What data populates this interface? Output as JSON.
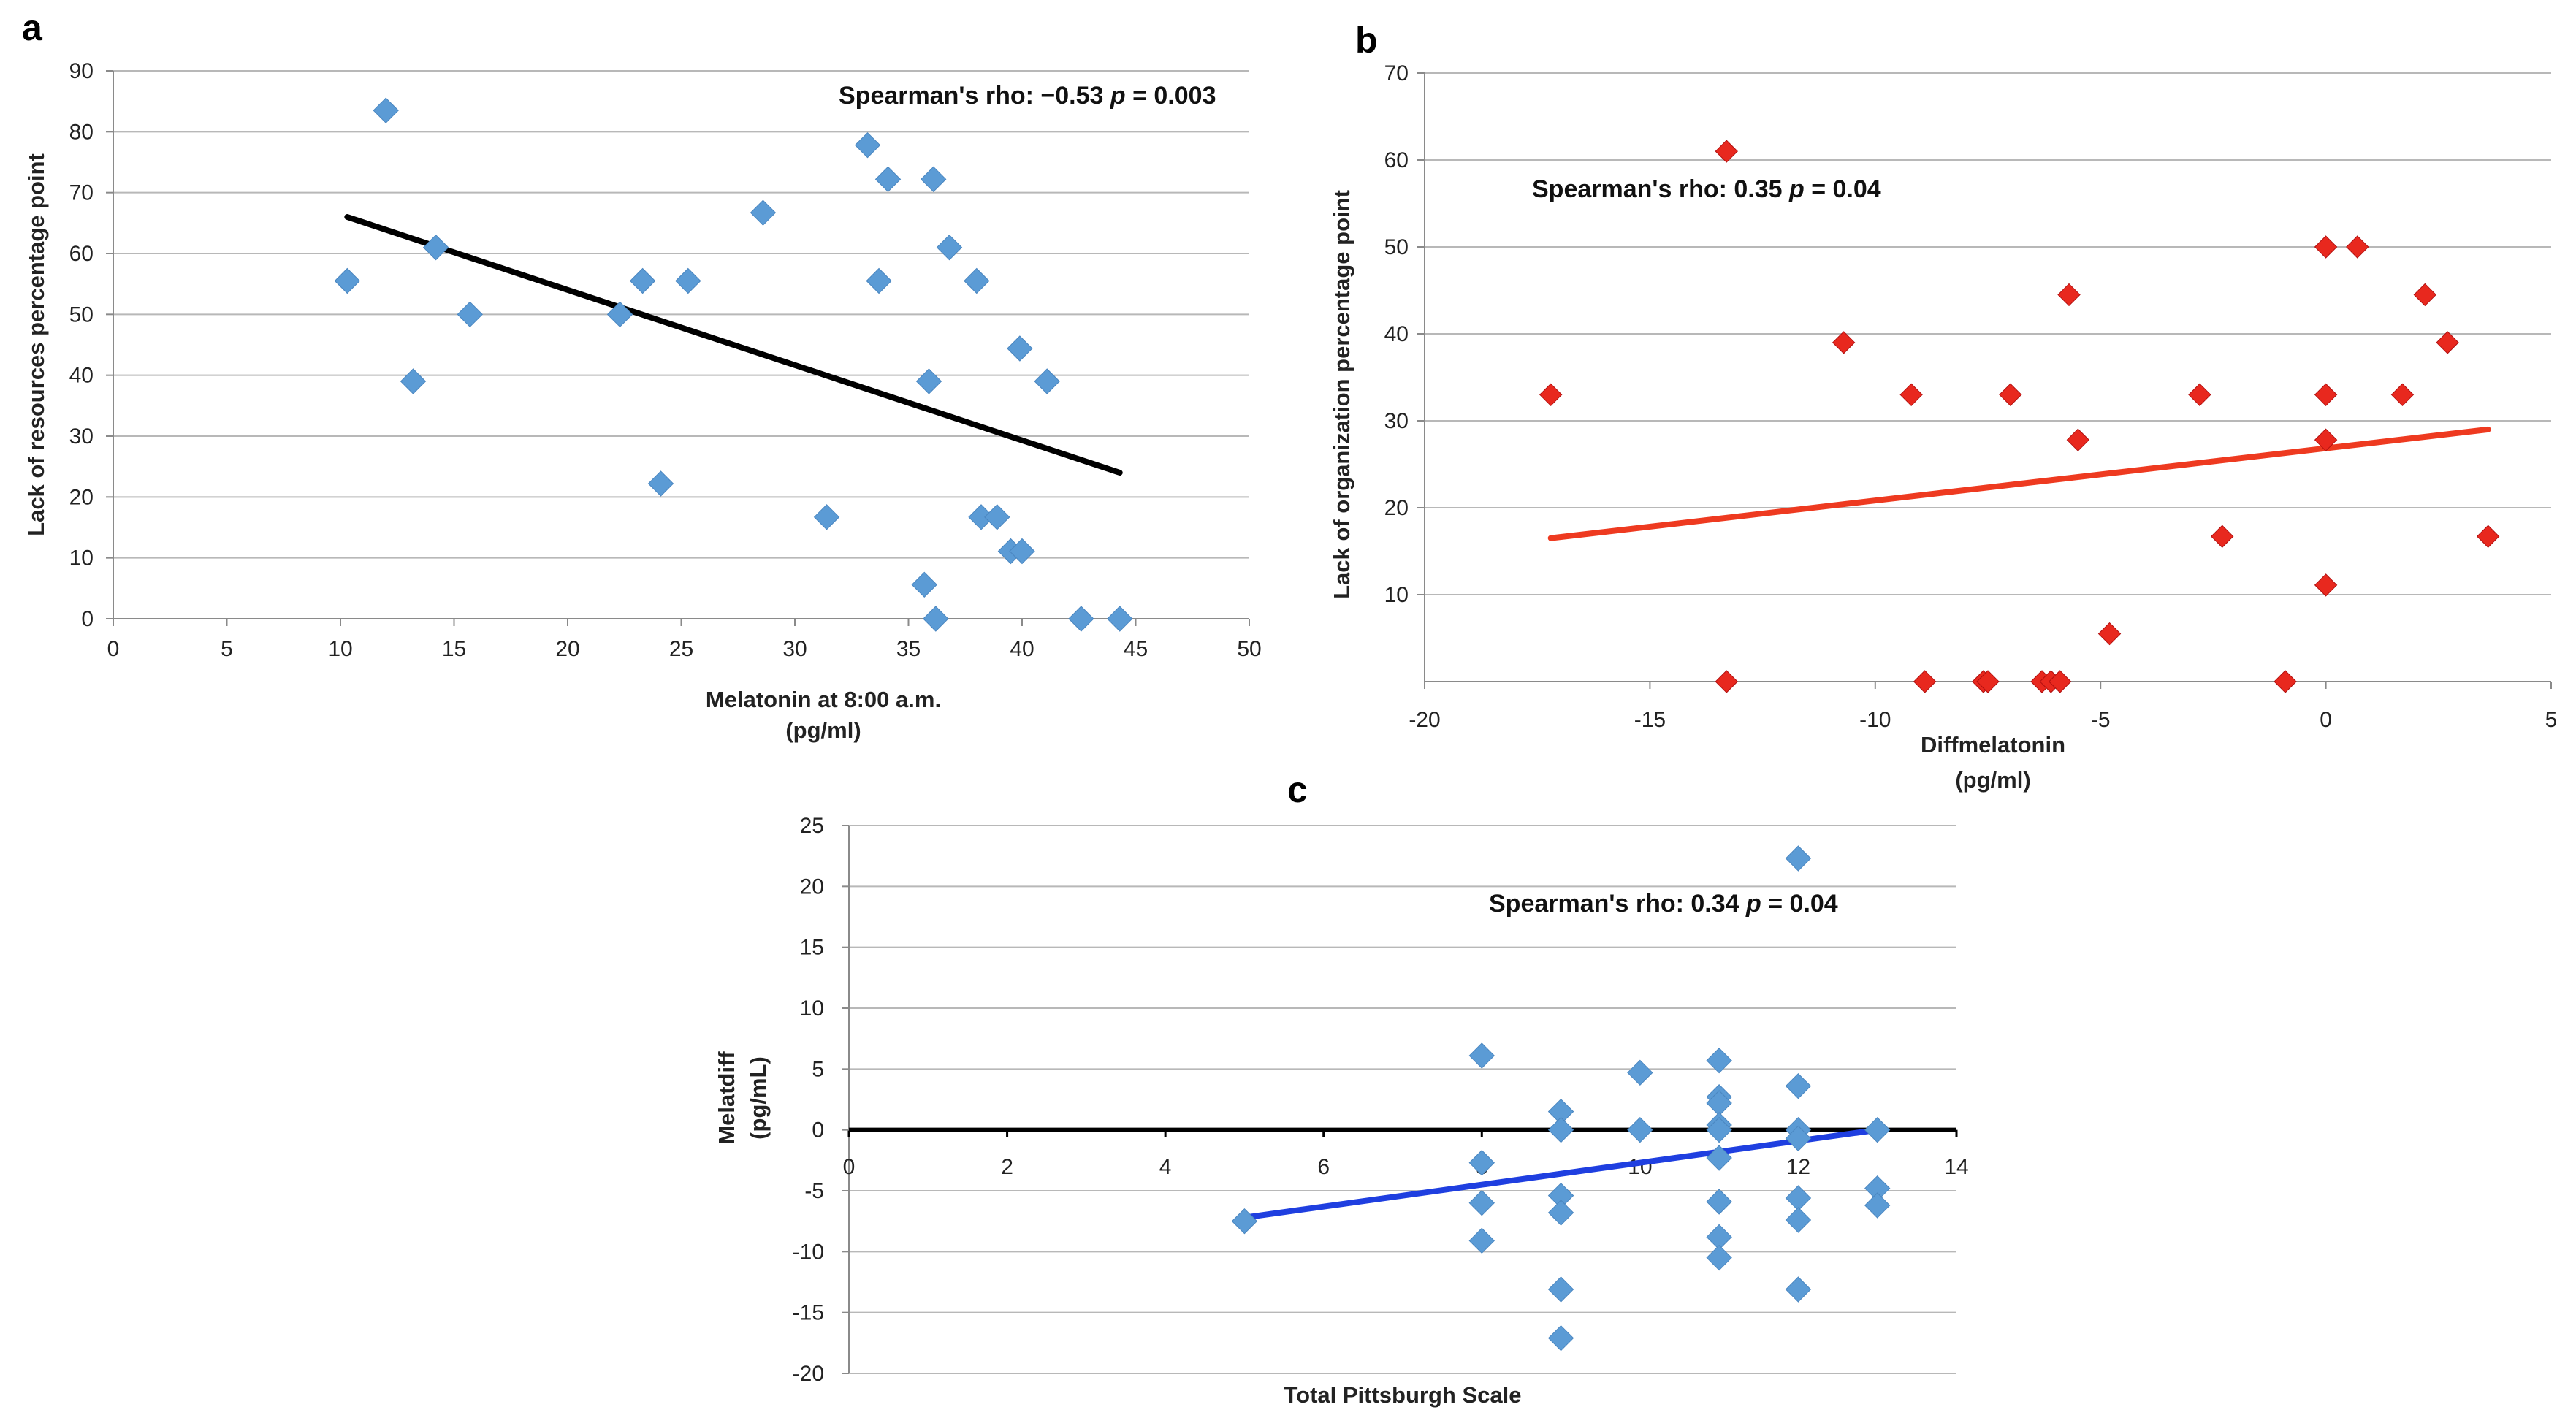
{
  "chart_data": [
    {
      "panel": "a",
      "type": "scatter",
      "xlabel": "Melatonin at 8:00 a.m.",
      "xlabel_unit": "(pg/ml)",
      "ylabel": "Lack of  resources percentage point",
      "xlim": [
        0,
        50
      ],
      "ylim": [
        0,
        90
      ],
      "xticks": [
        0,
        5,
        10,
        15,
        20,
        25,
        30,
        35,
        40,
        45,
        50
      ],
      "yticks": [
        0,
        10,
        20,
        30,
        40,
        50,
        60,
        70,
        80,
        90
      ],
      "annotation": {
        "prefix": "Spearman's rho: −0.53  ",
        "p_label": "p",
        "p_value": " = 0.003"
      },
      "marker": "diamond",
      "marker_color": "#5b9bd5",
      "line_color": "#000000",
      "trendline": [
        [
          10.3,
          66
        ],
        [
          44.3,
          24
        ]
      ],
      "points": [
        [
          10.3,
          55.5
        ],
        [
          12,
          83.5
        ],
        [
          13.2,
          39
        ],
        [
          14.2,
          61
        ],
        [
          15.7,
          50
        ],
        [
          22.3,
          50
        ],
        [
          23.3,
          55.5
        ],
        [
          24.1,
          22.2
        ],
        [
          25.3,
          55.5
        ],
        [
          28.6,
          66.7
        ],
        [
          31.4,
          16.7
        ],
        [
          33.2,
          77.8
        ],
        [
          33.7,
          55.5
        ],
        [
          34.1,
          72.2
        ],
        [
          35.7,
          5.6
        ],
        [
          35.9,
          39
        ],
        [
          36.1,
          72.2
        ],
        [
          36.2,
          0
        ],
        [
          36.8,
          61
        ],
        [
          38,
          55.5
        ],
        [
          38.2,
          16.7
        ],
        [
          38.9,
          16.7
        ],
        [
          39.5,
          11.1
        ],
        [
          39.9,
          44.4
        ],
        [
          40,
          11.1
        ],
        [
          41.1,
          39
        ],
        [
          42.6,
          0
        ],
        [
          44.3,
          0
        ]
      ]
    },
    {
      "panel": "b",
      "type": "scatter",
      "xlabel": "Diffmelatonin",
      "xlabel_unit": "(pg/ml)",
      "ylabel": "Lack of organization percentage point",
      "xlim": [
        -20,
        5
      ],
      "ylim": [
        0,
        70
      ],
      "xticks": [
        -20,
        -15,
        -10,
        -5,
        0,
        5
      ],
      "yticks": [
        10,
        20,
        30,
        40,
        50,
        60,
        70
      ],
      "annotation": {
        "prefix": "Spearman's rho: 0.35  ",
        "p_label": "p",
        "p_value": " = 0.04"
      },
      "marker": "diamond",
      "marker_color": "#e8281e",
      "line_color": "#ee3a20",
      "trendline": [
        [
          -17.2,
          16.5
        ],
        [
          3.6,
          29
        ]
      ],
      "points": [
        [
          -17.2,
          33
        ],
        [
          -13.3,
          61
        ],
        [
          -13.3,
          0
        ],
        [
          -10.7,
          39
        ],
        [
          -9.2,
          33
        ],
        [
          -8.9,
          0
        ],
        [
          -7.6,
          0
        ],
        [
          -7.5,
          0
        ],
        [
          -7,
          33
        ],
        [
          -6.3,
          0
        ],
        [
          -6.1,
          0
        ],
        [
          -5.9,
          0
        ],
        [
          -5.7,
          44.5
        ],
        [
          -5.5,
          27.8
        ],
        [
          -4.8,
          5.5
        ],
        [
          -2.8,
          33
        ],
        [
          -2.3,
          16.7
        ],
        [
          -0.9,
          0
        ],
        [
          0,
          50
        ],
        [
          0,
          33
        ],
        [
          0,
          27.8
        ],
        [
          0,
          11.1
        ],
        [
          0.7,
          50
        ],
        [
          1.7,
          33
        ],
        [
          2.2,
          44.5
        ],
        [
          2.7,
          39
        ],
        [
          3.6,
          16.7
        ]
      ]
    },
    {
      "panel": "c",
      "type": "scatter",
      "xlabel": "Total Pittsburgh Scale",
      "ylabel": "Melatdiff",
      "ylabel_unit": "(pg/mL)",
      "xlim": [
        0,
        14
      ],
      "ylim": [
        -20,
        25
      ],
      "xticks": [
        0,
        2,
        4,
        6,
        8,
        10,
        12,
        14
      ],
      "yticks": [
        -20,
        -15,
        -10,
        -5,
        0,
        5,
        10,
        15,
        20,
        25
      ],
      "annotation": {
        "prefix": "Spearman's rho: 0.34  ",
        "p_label": "p",
        "p_value": " = 0.04"
      },
      "marker": "diamond",
      "marker_color": "#5b9bd5",
      "line_color": "#1f3fe0",
      "zero_line_color": "#000000",
      "trendline": [
        [
          5,
          -7.2
        ],
        [
          13,
          0
        ]
      ],
      "points": [
        [
          5,
          -7.5
        ],
        [
          8,
          6.1
        ],
        [
          8,
          -2.7
        ],
        [
          8,
          -6
        ],
        [
          8,
          -9.1
        ],
        [
          9,
          1.5
        ],
        [
          9,
          0
        ],
        [
          9,
          -5.4
        ],
        [
          9,
          -6.8
        ],
        [
          9,
          -13.1
        ],
        [
          9,
          -17.1
        ],
        [
          10,
          4.7
        ],
        [
          10,
          0
        ],
        [
          11,
          5.7
        ],
        [
          11,
          2.7
        ],
        [
          11,
          2.2
        ],
        [
          11,
          0.4
        ],
        [
          11,
          0
        ],
        [
          11,
          -2.3
        ],
        [
          11,
          -5.9
        ],
        [
          11,
          -8.8
        ],
        [
          11,
          -10.5
        ],
        [
          12,
          22.3
        ],
        [
          12,
          3.6
        ],
        [
          12,
          0
        ],
        [
          12,
          -0.7
        ],
        [
          12,
          -5.6
        ],
        [
          12,
          -7.4
        ],
        [
          12,
          -13.1
        ],
        [
          13,
          0
        ],
        [
          13,
          -4.8
        ],
        [
          13,
          -6.2
        ]
      ]
    }
  ]
}
